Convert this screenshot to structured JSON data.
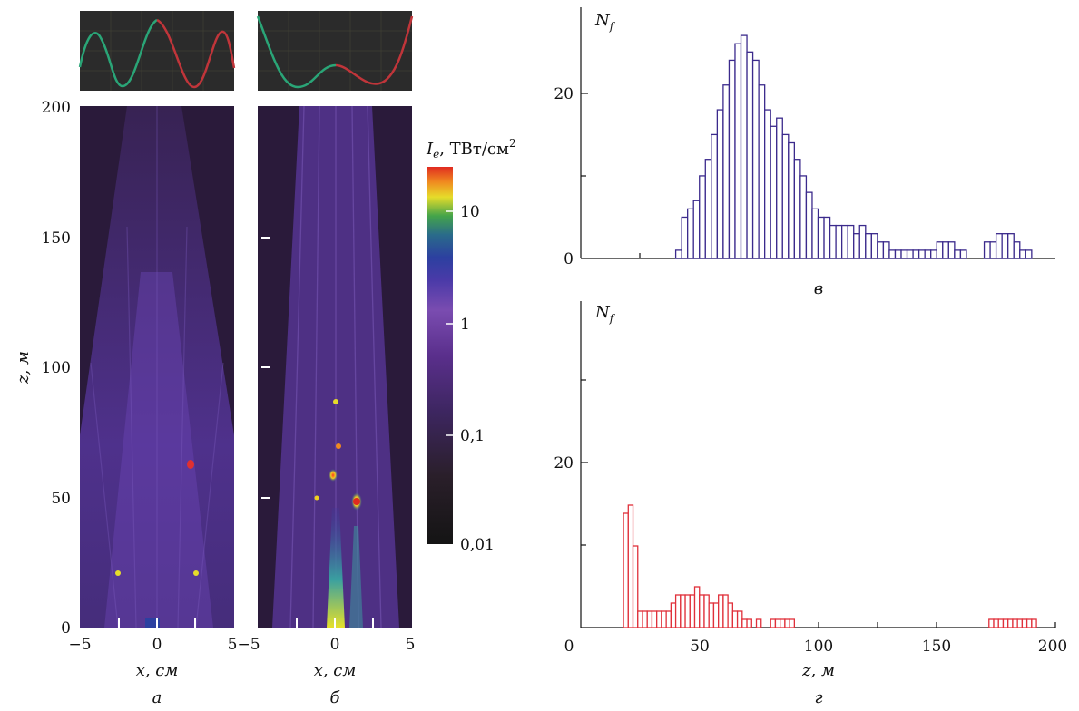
{
  "colors": {
    "purple_hist": "#3b2a8c",
    "red_hist": "#e0303a",
    "wave_green": "#2aa577",
    "wave_red": "#c0353a",
    "wave_bg": "#2a2a2a",
    "intensity_bg": "#2a1a3a"
  },
  "chart_data": [
    {
      "type": "heatmap",
      "panel": "а",
      "xlabel": "x, см",
      "ylabel": "z, м",
      "xlim": [
        -5,
        5
      ],
      "ylim": [
        0,
        200
      ],
      "xticks": [
        "−5",
        "0",
        "5"
      ],
      "yticks": [
        "0",
        "50",
        "100",
        "150",
        "200"
      ]
    },
    {
      "type": "heatmap",
      "panel": "б",
      "xlabel": "x, см",
      "xlim": [
        -5,
        5
      ],
      "ylim": [
        0,
        200
      ],
      "xticks": [
        "−5",
        "0",
        "5"
      ]
    },
    {
      "type": "heatmap",
      "panel": "colorbar",
      "label": "I",
      "label_sub": "e",
      "unit": ", ТВт/см",
      "unit_sup": "2",
      "ticks": [
        "10",
        "1",
        "0,1",
        "0,01"
      ],
      "tick_values": [
        10,
        1,
        0.1,
        0.01
      ],
      "range": [
        0.01,
        30
      ],
      "scale": "log"
    },
    {
      "type": "bar",
      "panel": "в",
      "ylabel": "N",
      "ylabel_sub": "f",
      "xlim": [
        0,
        200
      ],
      "ylim": [
        0,
        28
      ],
      "yticks": [
        "0",
        "20"
      ],
      "bin_width": 2.5,
      "bins_start": [
        40,
        42.5,
        45,
        47.5,
        50,
        52.5,
        55,
        57.5,
        60,
        62.5,
        65,
        67.5,
        70,
        72.5,
        75,
        77.5,
        80,
        82.5,
        85,
        87.5,
        90,
        92.5,
        95,
        97.5,
        100,
        102.5,
        105,
        107.5,
        110,
        112.5,
        115,
        117.5,
        120,
        122.5,
        125,
        127.5,
        130,
        132.5,
        135,
        137.5,
        140,
        142.5,
        145,
        147.5,
        150,
        152.5,
        155,
        157.5,
        160,
        162.5,
        165,
        167.5,
        170,
        172.5,
        175,
        177.5,
        180,
        182.5,
        185,
        187.5,
        190,
        192.5,
        195,
        197.5
      ],
      "values": [
        1,
        5,
        6,
        7,
        10,
        12,
        15,
        18,
        21,
        24,
        26,
        27,
        25,
        24,
        21,
        18,
        16,
        17,
        15,
        14,
        12,
        10,
        8,
        6,
        5,
        5,
        4,
        4,
        4,
        4,
        3,
        4,
        3,
        3,
        2,
        2,
        1,
        1,
        1,
        1,
        1,
        1,
        1,
        1,
        2,
        2,
        2,
        1,
        1,
        0,
        0,
        0,
        2,
        2,
        3,
        3,
        3,
        2,
        1,
        1,
        0,
        0,
        0,
        0
      ]
    },
    {
      "type": "bar",
      "panel": "г",
      "ylabel": "N",
      "ylabel_sub": "f",
      "xlabel": "z, м",
      "xlim": [
        0,
        200
      ],
      "ylim": [
        0,
        40
      ],
      "xticks": [
        "0",
        "50",
        "100",
        "150",
        "200"
      ],
      "yticks": [
        "20"
      ],
      "bin_width": 2,
      "bins_start": [
        18,
        20,
        22,
        24,
        26,
        28,
        30,
        32,
        34,
        36,
        38,
        40,
        42,
        44,
        46,
        48,
        50,
        52,
        54,
        56,
        58,
        60,
        62,
        64,
        66,
        68,
        70,
        72,
        74,
        76,
        78,
        80,
        82,
        84,
        86,
        88,
        90,
        172,
        174,
        176,
        178,
        180,
        182,
        184,
        186,
        188,
        190
      ],
      "values": [
        14,
        15,
        10,
        2,
        2,
        2,
        2,
        2,
        2,
        2,
        3,
        4,
        4,
        4,
        4,
        5,
        4,
        4,
        3,
        3,
        4,
        4,
        3,
        2,
        2,
        1,
        1,
        0,
        1,
        0,
        0,
        1,
        1,
        1,
        1,
        1,
        0,
        1,
        1,
        1,
        1,
        1,
        1,
        1,
        1,
        1,
        1
      ]
    }
  ]
}
